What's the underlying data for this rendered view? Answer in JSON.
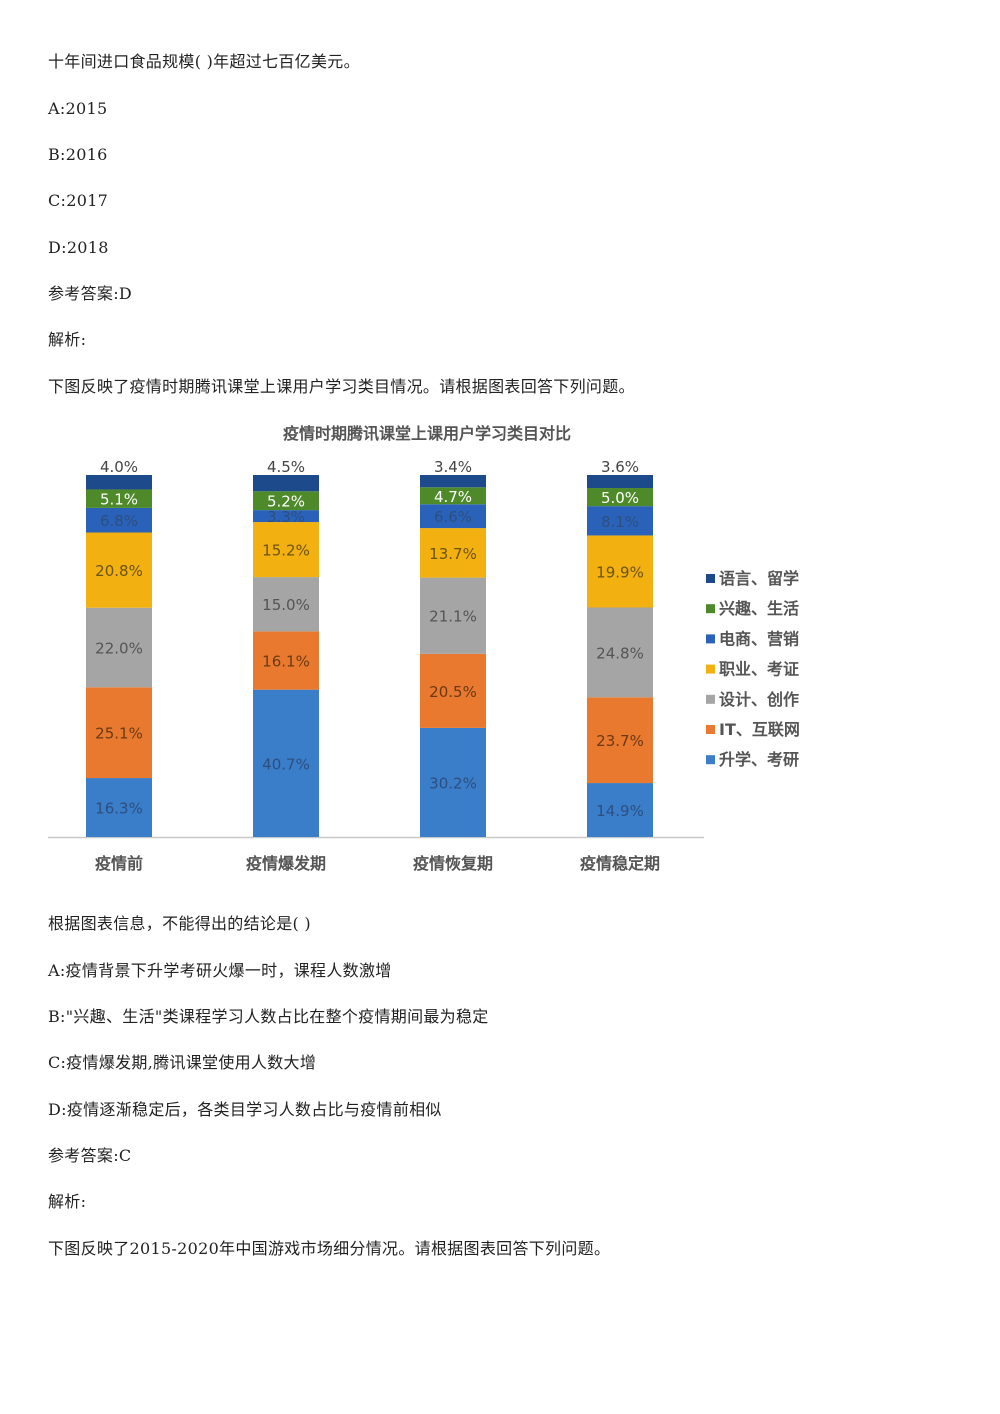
{
  "doc": {
    "q1_stem": "十年间进口食品规模( )年超过七百亿美元。",
    "q1_options": [
      "A:2015",
      "B:2016",
      "C:2017",
      "D:2018"
    ],
    "q1_answer": "参考答案:D",
    "q1_analysis": "解析:",
    "q2_intro": "下图反映了疫情时期腾讯课堂上课用户学习类目情况。请根据图表回答下列问题。",
    "q2_stem": "根据图表信息，不能得出的结论是( )",
    "q2_options": [
      "A:疫情背景下升学考研火爆一时，课程人数激增",
      "B:\"兴趣、生活\"类课程学习人数占比在整个疫情期间最为稳定",
      "C:疫情爆发期,腾讯课堂使用人数大增",
      "D:疫情逐渐稳定后，各类目学习人数占比与疫情前相似"
    ],
    "q2_answer": "参考答案:C",
    "q2_analysis": "解析:",
    "q3_intro": "下图反映了2015-2020年中国游戏市场细分情况。请根据图表回答下列问题。"
  },
  "chart_data": {
    "type": "bar",
    "stacked": true,
    "title": "疫情时期腾讯课堂上课用户学习类目对比",
    "categories": [
      "疫情前",
      "疫情爆发期",
      "疫情恢复期",
      "疫情稳定期"
    ],
    "series": [
      {
        "name": "升学、考研",
        "color": "#3a7dc9",
        "values": [
          16.3,
          40.7,
          30.2,
          14.9
        ]
      },
      {
        "name": "IT、互联网",
        "color": "#e8792f",
        "values": [
          25.1,
          16.1,
          20.5,
          23.7
        ]
      },
      {
        "name": "设计、创作",
        "color": "#a5a5a5",
        "values": [
          22.0,
          15.0,
          21.1,
          24.8
        ]
      },
      {
        "name": "职业、考证",
        "color": "#f2b011",
        "values": [
          20.8,
          15.2,
          13.7,
          19.9
        ]
      },
      {
        "name": "电商、营销",
        "color": "#2a62b9",
        "values": [
          6.8,
          3.3,
          6.6,
          8.1
        ]
      },
      {
        "name": "兴趣、生活",
        "color": "#4e8a2a",
        "values": [
          5.1,
          5.2,
          4.7,
          5.0
        ]
      },
      {
        "name": "语言、留学",
        "color": "#1d4a8a",
        "values": [
          4.0,
          4.5,
          3.4,
          3.6
        ]
      }
    ],
    "value_suffix": "%",
    "legend_position": "right",
    "grid": false
  }
}
